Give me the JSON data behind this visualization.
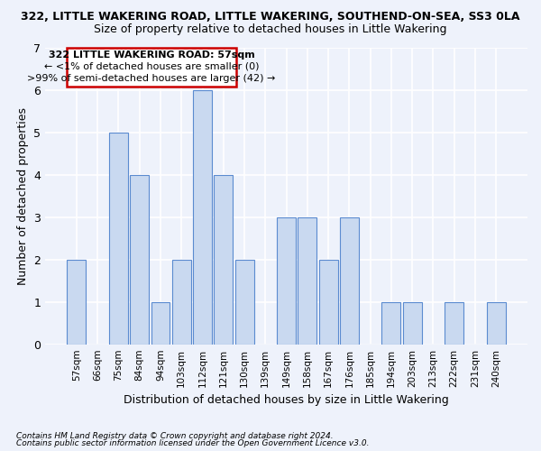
{
  "title": "322, LITTLE WAKERING ROAD, LITTLE WAKERING, SOUTHEND-ON-SEA, SS3 0LA",
  "subtitle": "Size of property relative to detached houses in Little Wakering",
  "xlabel": "Distribution of detached houses by size in Little Wakering",
  "ylabel": "Number of detached properties",
  "categories": [
    "57sqm",
    "66sqm",
    "75sqm",
    "84sqm",
    "94sqm",
    "103sqm",
    "112sqm",
    "121sqm",
    "130sqm",
    "139sqm",
    "149sqm",
    "158sqm",
    "167sqm",
    "176sqm",
    "185sqm",
    "194sqm",
    "203sqm",
    "213sqm",
    "222sqm",
    "231sqm",
    "240sqm"
  ],
  "values": [
    2,
    0,
    5,
    4,
    1,
    2,
    6,
    4,
    2,
    0,
    3,
    3,
    2,
    3,
    0,
    1,
    1,
    0,
    1,
    0,
    1
  ],
  "bar_color": "#c9d9f0",
  "bar_edge_color": "#5b8bd0",
  "annotation_title": "322 LITTLE WAKERING ROAD: 57sqm",
  "annotation_line1": "← <1% of detached houses are smaller (0)",
  "annotation_line2": ">99% of semi-detached houses are larger (42) →",
  "annotation_box_color": "#ffffff",
  "annotation_box_edge": "#cc0000",
  "ylim": [
    0,
    7
  ],
  "yticks": [
    0,
    1,
    2,
    3,
    4,
    5,
    6,
    7
  ],
  "footer1": "Contains HM Land Registry data © Crown copyright and database right 2024.",
  "footer2": "Contains public sector information licensed under the Open Government Licence v3.0.",
  "background_color": "#eef2fb",
  "grid_color": "#ffffff",
  "title_fontsize": 9,
  "subtitle_fontsize": 9,
  "ylabel_fontsize": 9,
  "xlabel_fontsize": 9
}
